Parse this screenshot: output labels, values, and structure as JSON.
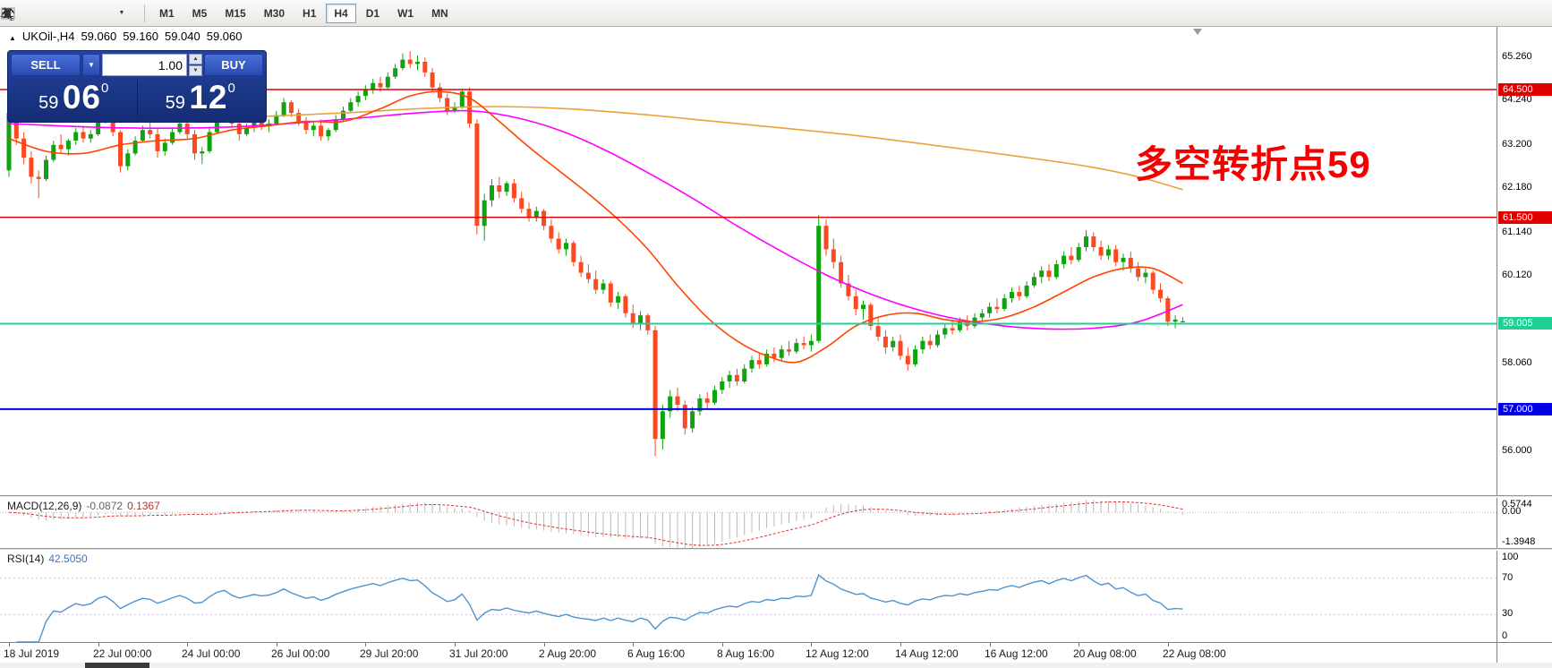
{
  "toolbar": {
    "icons": [
      "line-study-icon",
      "object-list-icon",
      "label-tool-icon",
      "text-tool-icon",
      "pointer-tool-icon",
      "chevron-down-icon"
    ],
    "timeframes": [
      "M1",
      "M5",
      "M15",
      "M30",
      "H1",
      "H4",
      "D1",
      "W1",
      "MN"
    ],
    "active_timeframe": "H4"
  },
  "glyphs": {
    "collapse_arrow": "▲",
    "combo_arrow": "▼",
    "spin_up": "▲",
    "spin_down": "▼"
  },
  "chart": {
    "header": {
      "symbol_period": "UKOil-,H4",
      "open": "59.060",
      "high": "59.160",
      "low": "59.040",
      "close": "59.060"
    },
    "trade_panel": {
      "sell_label": "SELL",
      "buy_label": "BUY",
      "volume": "1.00",
      "bid_main": "59",
      "bid_pips": "06",
      "bid_sup": "0",
      "ask_main": "59",
      "ask_pips": "12",
      "ask_sup": "0"
    },
    "annotation": {
      "text": "多空转折点59",
      "color": "#f40000"
    },
    "levels": [
      {
        "price": 64.5,
        "label": "64.500",
        "color": "#e00000",
        "width": 1.4
      },
      {
        "price": 61.5,
        "label": "61.500",
        "color": "#e00000",
        "width": 1.4
      },
      {
        "price": 59.005,
        "label": "59.005",
        "color": "#1ecf96",
        "width": 2
      },
      {
        "price": 57.0,
        "label": "57.000",
        "color": "#0000e6",
        "width": 2
      }
    ],
    "scale_ticks": [
      {
        "v": 65.26,
        "label": "65.260"
      },
      {
        "v": 64.24,
        "label": "64.240"
      },
      {
        "v": 63.2,
        "label": "63.200"
      },
      {
        "v": 62.18,
        "label": "62.180"
      },
      {
        "v": 61.14,
        "label": "61.140"
      },
      {
        "v": 60.12,
        "label": "60.120"
      },
      {
        "v": 58.06,
        "label": "58.060"
      },
      {
        "v": 56.0,
        "label": "56.000"
      }
    ]
  },
  "macd": {
    "name": "MACD(12,26,9)",
    "value": "-0.0872",
    "signal": "0.1367",
    "fast": 12,
    "slow": 26,
    "signal_period": 9,
    "range_max": 0.5744,
    "range_min": -1.3948,
    "scale": [
      {
        "v": 0.5744,
        "label": "0.5744"
      },
      {
        "v": 0,
        "label": "0.00"
      },
      {
        "v": -1.3948,
        "label": "-1.3948"
      }
    ]
  },
  "rsi": {
    "name": "RSI(14)",
    "value": "42.5050",
    "period": 14,
    "line_color": "#4f94cd",
    "levels": [
      70,
      30
    ],
    "scale": [
      {
        "v": 100,
        "label": "100"
      },
      {
        "v": 70,
        "label": "70"
      },
      {
        "v": 30,
        "label": "30"
      },
      {
        "v": 0,
        "label": "0"
      }
    ]
  },
  "chart_data": {
    "type": "candlestick",
    "title": "UKOil- H4",
    "price_axis": {
      "min": 54.98,
      "max": 65.97
    },
    "x_labels": [
      "18 Jul 2019",
      "22 Jul 00:00",
      "24 Jul 00:00",
      "26 Jul 00:00",
      "29 Jul 20:00",
      "31 Jul 20:00",
      "2 Aug 20:00",
      "6 Aug 16:00",
      "8 Aug 16:00",
      "12 Aug 12:00",
      "14 Aug 12:00",
      "16 Aug 12:00",
      "20 Aug 08:00",
      "22 Aug 08:00"
    ],
    "x_label_step": 12,
    "up_color": "#0fa30f",
    "down_color": "#fb4a22",
    "candles": [
      [
        62.6,
        64.1,
        62.45,
        63.95
      ],
      [
        63.95,
        64.0,
        63.2,
        63.35
      ],
      [
        63.35,
        63.5,
        62.75,
        62.9
      ],
      [
        62.9,
        63.05,
        62.3,
        62.45
      ],
      [
        62.45,
        62.6,
        61.95,
        62.4
      ],
      [
        62.4,
        62.95,
        62.35,
        62.85
      ],
      [
        62.85,
        63.3,
        62.8,
        63.2
      ],
      [
        63.2,
        63.45,
        63.0,
        63.1
      ],
      [
        63.1,
        63.35,
        62.95,
        63.3
      ],
      [
        63.3,
        63.6,
        63.2,
        63.5
      ],
      [
        63.5,
        63.65,
        63.25,
        63.35
      ],
      [
        63.35,
        63.55,
        63.25,
        63.45
      ],
      [
        63.45,
        63.9,
        63.4,
        63.8
      ],
      [
        63.8,
        64.2,
        63.7,
        63.95
      ],
      [
        63.95,
        64.0,
        63.4,
        63.5
      ],
      [
        63.5,
        63.55,
        62.55,
        62.7
      ],
      [
        62.7,
        63.1,
        62.6,
        63.0
      ],
      [
        63.0,
        63.4,
        62.95,
        63.3
      ],
      [
        63.3,
        63.65,
        63.25,
        63.55
      ],
      [
        63.55,
        63.75,
        63.35,
        63.45
      ],
      [
        63.45,
        63.6,
        62.9,
        63.05
      ],
      [
        63.05,
        63.35,
        62.95,
        63.25
      ],
      [
        63.25,
        63.6,
        63.2,
        63.5
      ],
      [
        63.5,
        63.8,
        63.45,
        63.7
      ],
      [
        63.7,
        63.85,
        63.35,
        63.45
      ],
      [
        63.45,
        63.55,
        62.85,
        63.0
      ],
      [
        63.0,
        63.15,
        62.75,
        63.05
      ],
      [
        63.05,
        63.6,
        63.0,
        63.5
      ],
      [
        63.5,
        64.0,
        63.45,
        63.9
      ],
      [
        63.9,
        64.25,
        63.8,
        64.1
      ],
      [
        64.1,
        64.2,
        63.6,
        63.7
      ],
      [
        63.7,
        63.8,
        63.3,
        63.45
      ],
      [
        63.45,
        63.7,
        63.4,
        63.6
      ],
      [
        63.6,
        63.85,
        63.5,
        63.75
      ],
      [
        63.75,
        63.9,
        63.55,
        63.65
      ],
      [
        63.65,
        63.8,
        63.5,
        63.7
      ],
      [
        63.7,
        64.0,
        63.65,
        63.9
      ],
      [
        63.9,
        64.3,
        63.85,
        64.2
      ],
      [
        64.2,
        64.25,
        63.85,
        63.95
      ],
      [
        63.95,
        64.05,
        63.65,
        63.75
      ],
      [
        63.75,
        63.85,
        63.45,
        63.55
      ],
      [
        63.55,
        63.75,
        63.4,
        63.65
      ],
      [
        63.65,
        63.8,
        63.3,
        63.4
      ],
      [
        63.4,
        63.6,
        63.3,
        63.55
      ],
      [
        63.55,
        63.9,
        63.5,
        63.8
      ],
      [
        63.8,
        64.1,
        63.75,
        64.0
      ],
      [
        64.0,
        64.3,
        63.95,
        64.2
      ],
      [
        64.2,
        64.45,
        64.1,
        64.35
      ],
      [
        64.35,
        64.6,
        64.25,
        64.5
      ],
      [
        64.5,
        64.75,
        64.4,
        64.65
      ],
      [
        64.65,
        64.8,
        64.45,
        64.55
      ],
      [
        64.55,
        64.9,
        64.5,
        64.8
      ],
      [
        64.8,
        65.1,
        64.75,
        65.0
      ],
      [
        65.0,
        65.35,
        64.95,
        65.2
      ],
      [
        65.2,
        65.4,
        65.0,
        65.1
      ],
      [
        65.1,
        65.3,
        64.95,
        65.15
      ],
      [
        65.15,
        65.25,
        64.8,
        64.9
      ],
      [
        64.9,
        65.0,
        64.45,
        64.55
      ],
      [
        64.55,
        64.65,
        64.2,
        64.3
      ],
      [
        64.3,
        64.4,
        63.9,
        64.0
      ],
      [
        64.0,
        64.2,
        63.95,
        64.1
      ],
      [
        64.1,
        64.5,
        64.05,
        64.45
      ],
      [
        64.45,
        64.55,
        63.6,
        63.7
      ],
      [
        63.7,
        63.8,
        61.1,
        61.3
      ],
      [
        61.3,
        62.05,
        60.95,
        61.9
      ],
      [
        61.9,
        62.4,
        61.75,
        62.25
      ],
      [
        62.25,
        62.45,
        61.95,
        62.1
      ],
      [
        62.1,
        62.35,
        62.0,
        62.3
      ],
      [
        62.3,
        62.4,
        61.85,
        61.95
      ],
      [
        61.95,
        62.1,
        61.6,
        61.7
      ],
      [
        61.7,
        61.85,
        61.4,
        61.5
      ],
      [
        61.5,
        61.75,
        61.4,
        61.65
      ],
      [
        61.65,
        61.7,
        61.2,
        61.3
      ],
      [
        61.3,
        61.45,
        60.9,
        61.0
      ],
      [
        61.0,
        61.15,
        60.65,
        60.75
      ],
      [
        60.75,
        61.0,
        60.6,
        60.9
      ],
      [
        60.9,
        60.95,
        60.35,
        60.45
      ],
      [
        60.45,
        60.6,
        60.1,
        60.2
      ],
      [
        60.2,
        60.4,
        59.95,
        60.05
      ],
      [
        60.05,
        60.25,
        59.7,
        59.8
      ],
      [
        59.8,
        60.05,
        59.7,
        59.95
      ],
      [
        59.95,
        60.0,
        59.4,
        59.5
      ],
      [
        59.5,
        59.75,
        59.35,
        59.65
      ],
      [
        59.65,
        59.7,
        59.15,
        59.25
      ],
      [
        59.25,
        59.45,
        58.9,
        59.0
      ],
      [
        59.0,
        59.3,
        58.85,
        59.2
      ],
      [
        59.2,
        59.25,
        58.75,
        58.85
      ],
      [
        58.85,
        58.95,
        55.9,
        56.3
      ],
      [
        56.3,
        57.1,
        56.05,
        56.95
      ],
      [
        56.95,
        57.45,
        56.8,
        57.3
      ],
      [
        57.3,
        57.5,
        56.95,
        57.1
      ],
      [
        57.1,
        57.2,
        56.4,
        56.55
      ],
      [
        56.55,
        57.05,
        56.45,
        56.95
      ],
      [
        56.95,
        57.35,
        56.85,
        57.25
      ],
      [
        57.25,
        57.4,
        57.0,
        57.15
      ],
      [
        57.15,
        57.55,
        57.1,
        57.45
      ],
      [
        57.45,
        57.75,
        57.35,
        57.65
      ],
      [
        57.65,
        57.9,
        57.5,
        57.8
      ],
      [
        57.8,
        57.95,
        57.55,
        57.65
      ],
      [
        57.65,
        58.05,
        57.6,
        57.95
      ],
      [
        57.95,
        58.25,
        57.85,
        58.15
      ],
      [
        58.15,
        58.3,
        57.95,
        58.05
      ],
      [
        58.05,
        58.4,
        58.0,
        58.3
      ],
      [
        58.3,
        58.45,
        58.1,
        58.2
      ],
      [
        58.2,
        58.5,
        58.15,
        58.4
      ],
      [
        58.4,
        58.6,
        58.25,
        58.35
      ],
      [
        58.35,
        58.65,
        58.3,
        58.55
      ],
      [
        58.55,
        58.7,
        58.4,
        58.5
      ],
      [
        58.5,
        58.75,
        58.35,
        58.6
      ],
      [
        58.6,
        61.55,
        58.55,
        61.3
      ],
      [
        61.3,
        61.45,
        60.6,
        60.75
      ],
      [
        60.75,
        61.0,
        60.3,
        60.45
      ],
      [
        60.45,
        60.6,
        59.85,
        59.95
      ],
      [
        59.95,
        60.15,
        59.55,
        59.65
      ],
      [
        59.65,
        59.8,
        59.2,
        59.35
      ],
      [
        59.35,
        59.55,
        59.1,
        59.45
      ],
      [
        59.45,
        59.5,
        58.85,
        58.95
      ],
      [
        58.95,
        59.15,
        58.6,
        58.7
      ],
      [
        58.7,
        58.85,
        58.3,
        58.45
      ],
      [
        58.45,
        58.7,
        58.35,
        58.6
      ],
      [
        58.6,
        58.75,
        58.15,
        58.25
      ],
      [
        58.25,
        58.45,
        57.9,
        58.05
      ],
      [
        58.05,
        58.5,
        58.0,
        58.4
      ],
      [
        58.4,
        58.7,
        58.3,
        58.6
      ],
      [
        58.6,
        58.75,
        58.4,
        58.5
      ],
      [
        58.5,
        58.85,
        58.45,
        58.75
      ],
      [
        58.75,
        59.0,
        58.65,
        58.9
      ],
      [
        58.9,
        59.1,
        58.75,
        58.85
      ],
      [
        58.85,
        59.15,
        58.8,
        59.05
      ],
      [
        59.05,
        59.2,
        58.85,
        58.95
      ],
      [
        58.95,
        59.25,
        58.9,
        59.15
      ],
      [
        59.15,
        59.35,
        59.05,
        59.25
      ],
      [
        59.25,
        59.5,
        59.15,
        59.4
      ],
      [
        59.4,
        59.6,
        59.25,
        59.35
      ],
      [
        59.35,
        59.7,
        59.3,
        59.6
      ],
      [
        59.6,
        59.85,
        59.5,
        59.75
      ],
      [
        59.75,
        59.9,
        59.55,
        59.65
      ],
      [
        59.65,
        60.0,
        59.6,
        59.9
      ],
      [
        59.9,
        60.2,
        59.85,
        60.1
      ],
      [
        60.1,
        60.35,
        59.95,
        60.25
      ],
      [
        60.25,
        60.4,
        60.0,
        60.1
      ],
      [
        60.1,
        60.5,
        60.05,
        60.4
      ],
      [
        60.4,
        60.7,
        60.3,
        60.6
      ],
      [
        60.6,
        60.8,
        60.4,
        60.5
      ],
      [
        60.5,
        60.9,
        60.45,
        60.8
      ],
      [
        60.8,
        61.2,
        60.7,
        61.05
      ],
      [
        61.05,
        61.15,
        60.7,
        60.8
      ],
      [
        60.8,
        60.95,
        60.5,
        60.6
      ],
      [
        60.6,
        60.85,
        60.5,
        60.75
      ],
      [
        60.75,
        60.85,
        60.35,
        60.45
      ],
      [
        60.45,
        60.65,
        60.25,
        60.55
      ],
      [
        60.55,
        60.7,
        60.2,
        60.3
      ],
      [
        60.3,
        60.45,
        60.0,
        60.1
      ],
      [
        60.1,
        60.3,
        59.95,
        60.2
      ],
      [
        60.2,
        60.25,
        59.7,
        59.8
      ],
      [
        59.8,
        59.95,
        59.5,
        59.6
      ],
      [
        59.6,
        59.65,
        58.95,
        59.05
      ],
      [
        59.05,
        59.2,
        58.9,
        59.1
      ],
      [
        59.06,
        59.16,
        59.04,
        59.06
      ]
    ],
    "moving_averages": [
      {
        "name": "ma-slow",
        "color": "#e8a23b",
        "points": [
          [
            0,
            63.95
          ],
          [
            15,
            63.88
          ],
          [
            30,
            63.85
          ],
          [
            45,
            63.95
          ],
          [
            55,
            64.05
          ],
          [
            65,
            64.1
          ],
          [
            75,
            64.05
          ],
          [
            85,
            63.92
          ],
          [
            95,
            63.75
          ],
          [
            105,
            63.58
          ],
          [
            115,
            63.4
          ],
          [
            125,
            63.18
          ],
          [
            135,
            62.95
          ],
          [
            145,
            62.7
          ],
          [
            152,
            62.45
          ],
          [
            158,
            62.15
          ]
        ]
      },
      {
        "name": "ma-medium",
        "color": "#ff00ff",
        "points": [
          [
            0,
            63.7
          ],
          [
            15,
            63.6
          ],
          [
            30,
            63.62
          ],
          [
            45,
            63.8
          ],
          [
            55,
            63.95
          ],
          [
            62,
            64.0
          ],
          [
            68,
            63.85
          ],
          [
            74,
            63.55
          ],
          [
            80,
            63.1
          ],
          [
            86,
            62.55
          ],
          [
            92,
            61.95
          ],
          [
            98,
            61.3
          ],
          [
            104,
            60.7
          ],
          [
            110,
            60.15
          ],
          [
            116,
            59.7
          ],
          [
            122,
            59.35
          ],
          [
            128,
            59.1
          ],
          [
            134,
            58.95
          ],
          [
            140,
            58.88
          ],
          [
            146,
            58.9
          ],
          [
            152,
            59.05
          ],
          [
            158,
            59.45
          ]
        ]
      },
      {
        "name": "ma-fast",
        "color": "#ff4500",
        "points": [
          [
            0,
            63.35
          ],
          [
            5,
            63.05
          ],
          [
            10,
            63.0
          ],
          [
            15,
            63.2
          ],
          [
            20,
            63.3
          ],
          [
            25,
            63.35
          ],
          [
            30,
            63.55
          ],
          [
            35,
            63.65
          ],
          [
            40,
            63.75
          ],
          [
            45,
            63.75
          ],
          [
            50,
            64.05
          ],
          [
            54,
            64.35
          ],
          [
            58,
            64.45
          ],
          [
            62,
            64.3
          ],
          [
            66,
            63.75
          ],
          [
            70,
            63.15
          ],
          [
            74,
            62.6
          ],
          [
            78,
            62.05
          ],
          [
            82,
            61.45
          ],
          [
            86,
            60.75
          ],
          [
            90,
            59.9
          ],
          [
            94,
            59.15
          ],
          [
            98,
            58.6
          ],
          [
            102,
            58.25
          ],
          [
            106,
            58.1
          ],
          [
            110,
            58.45
          ],
          [
            114,
            58.95
          ],
          [
            118,
            59.2
          ],
          [
            122,
            59.25
          ],
          [
            126,
            59.1
          ],
          [
            130,
            59.05
          ],
          [
            134,
            59.15
          ],
          [
            138,
            59.4
          ],
          [
            142,
            59.75
          ],
          [
            146,
            60.1
          ],
          [
            150,
            60.3
          ],
          [
            154,
            60.3
          ],
          [
            158,
            59.95
          ]
        ]
      }
    ]
  }
}
